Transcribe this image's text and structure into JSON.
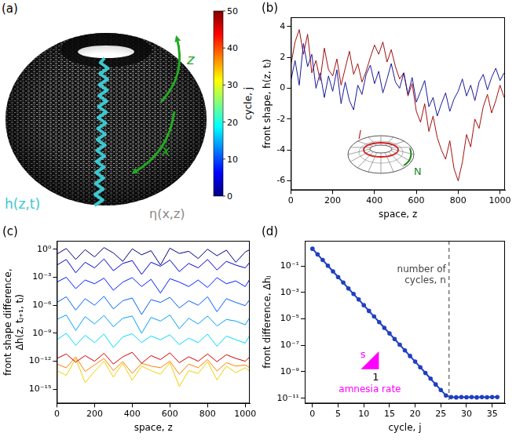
{
  "chart_data": [
    {
      "panel": "(a)",
      "type": "diagram",
      "annotations": [
        {
          "text": "z",
          "color": "#22aa22"
        },
        {
          "text": "x",
          "color": "#22aa22"
        },
        {
          "text": "h(z,t)",
          "color": "#3cc8d0"
        },
        {
          "text": "η(x,z)",
          "color": "#8a8a8a"
        }
      ],
      "colorbar": {
        "title": "cycle, j",
        "lim": [
          0,
          50
        ],
        "ticks": [
          0,
          10,
          20,
          30,
          40,
          50
        ]
      }
    },
    {
      "panel": "(b)",
      "type": "line",
      "x_label": "space, z",
      "y_label": "front shape, h(z, tⱼ)",
      "x": [
        0,
        20,
        40,
        60,
        80,
        100,
        120,
        140,
        160,
        180,
        200,
        220,
        240,
        260,
        280,
        300,
        320,
        340,
        360,
        380,
        400,
        420,
        440,
        460,
        480,
        500,
        520,
        540,
        560,
        580,
        600,
        620,
        640,
        660,
        680,
        700,
        720,
        740,
        760,
        780,
        800,
        820,
        840,
        860,
        880,
        900,
        920,
        940,
        960,
        980,
        1000,
        1020
      ],
      "series": [
        {
          "color": "#a01010",
          "values": [
            1.5,
            3.0,
            3.8,
            2.2,
            3.5,
            1.0,
            1.8,
            0.5,
            2.6,
            1.2,
            0.8,
            1.9,
            0.2,
            1.3,
            2.4,
            0.9,
            1.6,
            0.4,
            1.1,
            2.0,
            2.8,
            2.2,
            3.0,
            1.7,
            2.5,
            1.4,
            0.6,
            1.0,
            -0.5,
            0.3,
            -1.5,
            -2.2,
            -1.0,
            -2.8,
            -1.8,
            -3.2,
            -4.0,
            -4.6,
            -3.4,
            -5.2,
            -6.0,
            -4.8,
            -3.0,
            -3.8,
            -2.0,
            -2.6,
            -1.2,
            -0.4,
            -1.6,
            -0.8,
            0.2,
            -0.6
          ]
        },
        {
          "color": "#1a1a9a",
          "values": [
            0.5,
            1.8,
            0.2,
            2.9,
            1.4,
            2.2,
            0.0,
            1.0,
            -0.6,
            0.8,
            -0.2,
            1.2,
            -1.0,
            0.4,
            -0.8,
            -1.4,
            0.2,
            -0.4,
            0.9,
            1.5,
            0.3,
            1.1,
            -0.3,
            0.6,
            1.6,
            0.4,
            0.0,
            1.0,
            -0.4,
            0.7,
            -0.9,
            -0.2,
            0.5,
            -1.2,
            -0.6,
            -1.8,
            -1.0,
            -0.3,
            -1.5,
            -0.7,
            -0.2,
            0.6,
            -0.5,
            0.2,
            -0.8,
            0.4,
            0.9,
            -0.1,
            0.7,
            1.3,
            0.5,
            1.0
          ]
        }
      ],
      "xlim": [
        0,
        1024
      ],
      "xticks": [
        0,
        200,
        400,
        600,
        800,
        1000
      ],
      "ylim": [
        -6.6,
        4.6
      ],
      "yticks": [
        -6,
        -4,
        -2,
        0,
        2,
        4
      ],
      "grid": false,
      "annotations": [
        {
          "text": "l",
          "color": "#d02020"
        },
        {
          "text": "N",
          "color": "#228822"
        }
      ]
    },
    {
      "panel": "(c)",
      "type": "line",
      "log": "y",
      "x_label": "space, z",
      "y_label": "front shape difference, Δh(z, tⱼ₊₁, tⱼ)",
      "x": [
        0,
        50,
        100,
        150,
        200,
        250,
        300,
        350,
        400,
        450,
        500,
        550,
        600,
        650,
        700,
        750,
        800,
        850,
        900,
        950,
        1000,
        1024
      ],
      "series": [
        {
          "color": "#00007f",
          "values": [
            0.3,
            1.2,
            0.08,
            0.9,
            0.15,
            1.5,
            0.4,
            0.05,
            1.1,
            0.25,
            0.7,
            0.02,
            1.3,
            0.35,
            0.6,
            0.1,
            1.0,
            0.2,
            0.8,
            0.04,
            0.5,
            0.9
          ]
        },
        {
          "color": "#0000d0",
          "values": [
            0.02,
            0.08,
            0.003,
            0.04,
            0.01,
            0.09,
            0.005,
            0.03,
            0.06,
            0.002,
            0.04,
            0.015,
            0.07,
            0.004,
            0.03,
            0.01,
            0.08,
            0.006,
            0.05,
            0.02,
            0.01,
            0.04
          ]
        },
        {
          "color": "#0020ff",
          "values": [
            0.0003,
            0.001,
            6e-05,
            0.0005,
            0.0002,
            0.0008,
            4e-05,
            0.0003,
            0.0009,
            0.0001,
            0.0006,
            2e-05,
            0.0007,
            0.0003,
            0.0001,
            0.0005,
            8e-05,
            0.0009,
            0.0002,
            0.0004,
            0.0001,
            0.0006
          ]
        },
        {
          "color": "#0060ff",
          "values": [
            2e-06,
            8e-06,
            3e-07,
            5e-06,
            1e-06,
            9e-06,
            4e-07,
            3e-06,
            6e-06,
            1e-07,
            4e-06,
            2e-06,
            7e-06,
            5e-07,
            3e-06,
            1e-06,
            8e-06,
            2e-07,
            5e-06,
            2e-06,
            9e-07,
            4e-06
          ]
        },
        {
          "color": "#00a0ff",
          "values": [
            3e-08,
            9e-08,
            2e-09,
            6e-08,
            1e-08,
            8e-08,
            5e-09,
            4e-08,
            7e-08,
            1e-09,
            5e-08,
            2e-08,
            9e-08,
            3e-09,
            4e-08,
            1e-08,
            7e-08,
            6e-09,
            3e-08,
            2e-08,
            8e-09,
            5e-08
          ]
        },
        {
          "color": "#00d8ff",
          "values": [
            2e-10,
            1e-09,
            5e-11,
            6e-10,
            1e-10,
            8e-10,
            3e-11,
            4e-10,
            9e-10,
            1e-10,
            5e-10,
            2e-10,
            7e-10,
            6e-11,
            3e-10,
            1e-10,
            8e-10,
            4e-11,
            5e-10,
            2e-10,
            9e-11,
            6e-10
          ]
        },
        {
          "color": "#f0d000",
          "values": [
            1e-13,
            3e-14,
            2e-12,
            5e-15,
            8e-14,
            1e-12,
            2e-14,
            6e-13,
            9e-15,
            3e-13,
            1e-13,
            4e-14,
            7e-13,
            2e-15,
            1e-13,
            5e-14,
            9e-13,
            1e-14,
            3e-13,
            6e-14,
            2e-13,
            8e-14
          ]
        },
        {
          "color": "#ff8000",
          "values": [
            5e-13,
            2e-13,
            3e-12,
            8e-14,
            4e-13,
            2e-12,
            1e-13,
            9e-13,
            5e-14,
            6e-13,
            3e-13,
            2e-13,
            1e-12,
            4e-14,
            5e-13,
            2e-13,
            1.5e-12,
            9e-14,
            7e-13,
            3e-13,
            4e-13,
            2e-13
          ]
        },
        {
          "color": "#d00000",
          "values": [
            2e-12,
            6e-12,
            8e-13,
            4e-12,
            1e-12,
            7e-12,
            5e-13,
            3e-12,
            9e-12,
            6e-13,
            4e-12,
            1.5e-12,
            8e-12,
            7e-13,
            3e-12,
            1e-12,
            6e-12,
            9e-13,
            5e-12,
            2e-12,
            1e-12,
            3e-12
          ]
        }
      ],
      "xlim": [
        0,
        1024
      ],
      "xticks": [
        0,
        200,
        400,
        600,
        800,
        1000
      ],
      "ylim": [
        3e-17,
        8
      ],
      "yticks": [
        {
          "value": 1,
          "label": "10⁰"
        },
        {
          "value": 0.001,
          "label": "10⁻³"
        },
        {
          "value": 1e-06,
          "label": "10⁻⁶"
        },
        {
          "value": 1e-09,
          "label": "10⁻⁹"
        },
        {
          "value": 1e-12,
          "label": "10⁻¹²"
        },
        {
          "value": 1e-15,
          "label": "10⁻¹⁵"
        }
      ],
      "grid": false
    },
    {
      "panel": "(d)",
      "type": "line",
      "log": "y",
      "x_label": "cycle, j",
      "y_label": "front difference, Δhⱼ",
      "x": [
        0,
        1,
        2,
        3,
        4,
        5,
        6,
        7,
        8,
        9,
        10,
        11,
        12,
        13,
        14,
        15,
        16,
        17,
        18,
        19,
        20,
        21,
        22,
        23,
        24,
        25,
        26,
        27,
        28,
        29,
        30,
        31,
        32,
        33,
        34,
        35,
        36
      ],
      "series": [
        {
          "color": "#2040c0",
          "marker": "circle",
          "values": [
            2.0,
            0.75,
            0.28,
            0.105,
            0.039,
            0.0145,
            0.0055,
            0.002,
            0.00076,
            0.00029,
            0.000107,
            4e-05,
            1.5e-05,
            5.6e-06,
            2.1e-06,
            7.9e-07,
            3e-07,
            1.1e-07,
            4.1e-08,
            1.55e-08,
            5.8e-09,
            2.2e-09,
            8.1e-10,
            3e-10,
            1.1e-10,
            4.2e-11,
            1.6e-11,
            1.2e-11,
            1.15e-11,
            1.2e-11,
            1.18e-11,
            1.2e-11,
            1.15e-11,
            1.2e-11,
            1.18e-11,
            1.2e-11,
            1.2e-11
          ]
        }
      ],
      "xlim": [
        -1.5,
        37.5
      ],
      "xticks": [
        0,
        5,
        10,
        15,
        20,
        25,
        30,
        35
      ],
      "ylim": [
        4e-12,
        8
      ],
      "yticks": [
        {
          "value": 1e-11,
          "label": "10⁻¹¹"
        },
        {
          "value": 1e-09,
          "label": "10⁻⁹"
        },
        {
          "value": 1e-07,
          "label": "10⁻⁷"
        },
        {
          "value": 1e-05,
          "label": "10⁻⁵"
        },
        {
          "value": 0.001,
          "label": "10⁻³"
        },
        {
          "value": 0.1,
          "label": "10⁻¹"
        }
      ],
      "grid": false,
      "annotations": [
        {
          "text": "number of cycles, n",
          "x": 26.6,
          "line_style": "dashed"
        },
        {
          "text": "s",
          "color": "#ff00ff"
        },
        {
          "text": "1",
          "color": "#000000"
        },
        {
          "text": "amnesia rate",
          "color": "#ff00ff"
        }
      ]
    }
  ]
}
